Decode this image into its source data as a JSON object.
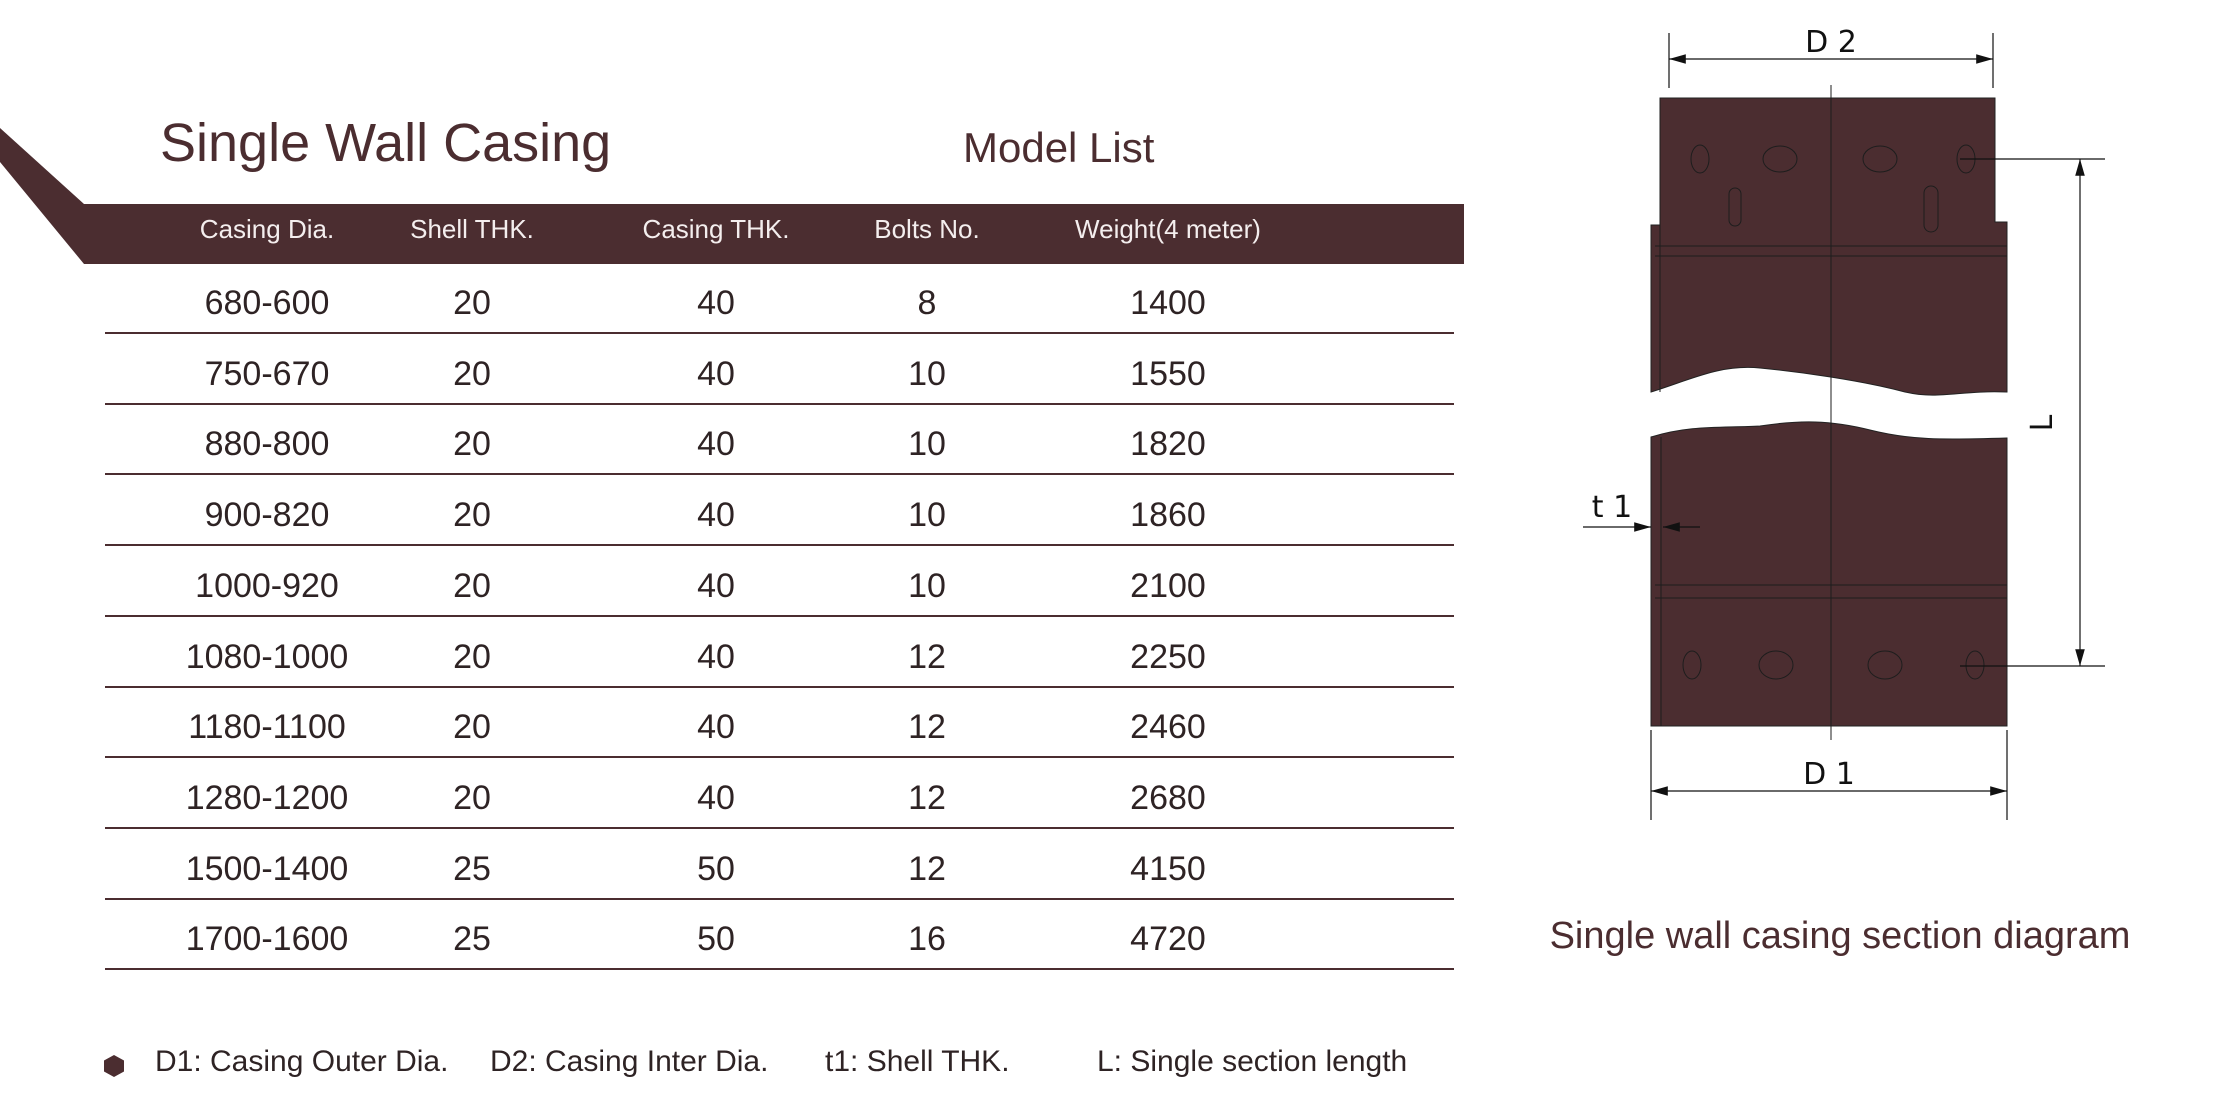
{
  "title": "Single Wall Casing",
  "subtitle": "Model List",
  "colors": {
    "brand": "#4b2d30",
    "header_text": "#f4eeee"
  },
  "table": {
    "headers": [
      "Casing Dia.",
      "Shell THK.",
      "Casing THK.",
      "Bolts No.",
      "Weight(4 meter)"
    ],
    "rows": [
      [
        "680-600",
        "20",
        "40",
        "8",
        "1400"
      ],
      [
        "750-670",
        "20",
        "40",
        "10",
        "1550"
      ],
      [
        "880-800",
        "20",
        "40",
        "10",
        "1820"
      ],
      [
        "900-820",
        "20",
        "40",
        "10",
        "1860"
      ],
      [
        "1000-920",
        "20",
        "40",
        "10",
        "2100"
      ],
      [
        "1080-1000",
        "20",
        "40",
        "12",
        "2250"
      ],
      [
        "1180-1100",
        "20",
        "40",
        "12",
        "2460"
      ],
      [
        "1280-1200",
        "20",
        "40",
        "12",
        "2680"
      ],
      [
        "1500-1400",
        "25",
        "50",
        "12",
        "4150"
      ],
      [
        "1700-1600",
        "25",
        "50",
        "16",
        "4720"
      ]
    ]
  },
  "legend": {
    "icon": "hexagon-bullet-icon",
    "items": [
      "D1: Casing Outer Dia.",
      "D2: Casing Inter Dia.",
      "t1: Shell THK.",
      "L: Single section length"
    ]
  },
  "diagram": {
    "caption": "Single wall casing section diagram",
    "labels": {
      "d2": "D 2",
      "d1": "D 1",
      "t1": "t 1",
      "l": "L"
    }
  }
}
